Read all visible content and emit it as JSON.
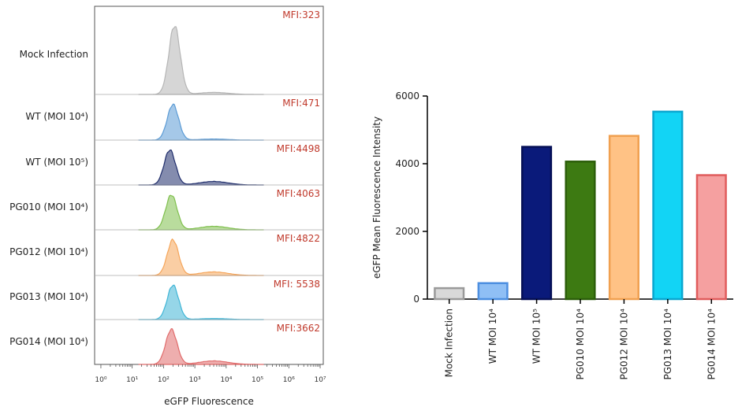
{
  "chart_data": [
    {
      "type": "histogram",
      "title": "",
      "xlabel": "eGFP Fluorescence",
      "x_scale": "log",
      "x_ticks": [
        "10⁰",
        "10¹",
        "10²",
        "10³",
        "10⁴",
        "10⁵",
        "10⁶",
        "10⁷"
      ],
      "samples": [
        {
          "name": "Mock Infection",
          "mfi_label": "MFI:323",
          "color": "#b5b5b5",
          "peak_log": 2.35
        },
        {
          "name": "WT (MOI 10⁴)",
          "mfi_label": "MFI:471",
          "color": "#5b9bd5",
          "peak_log": 2.3
        },
        {
          "name": "WT (MOI 10⁵)",
          "mfi_label": "MFI:4498",
          "color": "#1f2d6b",
          "peak_log": 2.2
        },
        {
          "name": "PG010 (MOI 10⁴)",
          "mfi_label": "MFI:4063",
          "color": "#7fbf4d",
          "peak_log": 2.25
        },
        {
          "name": "PG012 (MOI 10⁴)",
          "mfi_label": "MFI:4822",
          "color": "#f5a55a",
          "peak_log": 2.3
        },
        {
          "name": "PG013 (MOI 10⁴)",
          "mfi_label": "MFI: 5538",
          "color": "#3fb5d6",
          "peak_log": 2.3
        },
        {
          "name": "PG014 (MOI 10⁴)",
          "mfi_label": "MFI:3662",
          "color": "#e06b6b",
          "peak_log": 2.25
        }
      ]
    },
    {
      "type": "bar",
      "title": "",
      "xlabel": "",
      "ylabel": "eGFP Mean Fluorescence Intensity",
      "ylim": [
        0,
        6000
      ],
      "y_ticks": [
        0,
        2000,
        4000,
        6000
      ],
      "categories": [
        "Mock Infection",
        "WT MOI 10⁴",
        "WT MOI 10⁵",
        "PG010 MOI 10⁴",
        "PG012 MOI 10⁴",
        "PG013 MOI 10⁴",
        "PG014 MOI 10⁴"
      ],
      "values": [
        323,
        471,
        4498,
        4063,
        4822,
        5538,
        3662
      ],
      "fill_colors": [
        "#d9d9d9",
        "#8fbff5",
        "#0a1a7a",
        "#3d7a12",
        "#ffc285",
        "#12d4f5",
        "#f5a0a0"
      ],
      "stroke_colors": [
        "#9a9a9a",
        "#4d8fe0",
        "#050f55",
        "#2c5e0a",
        "#f0a050",
        "#0aa7d0",
        "#e05c5c"
      ]
    }
  ]
}
